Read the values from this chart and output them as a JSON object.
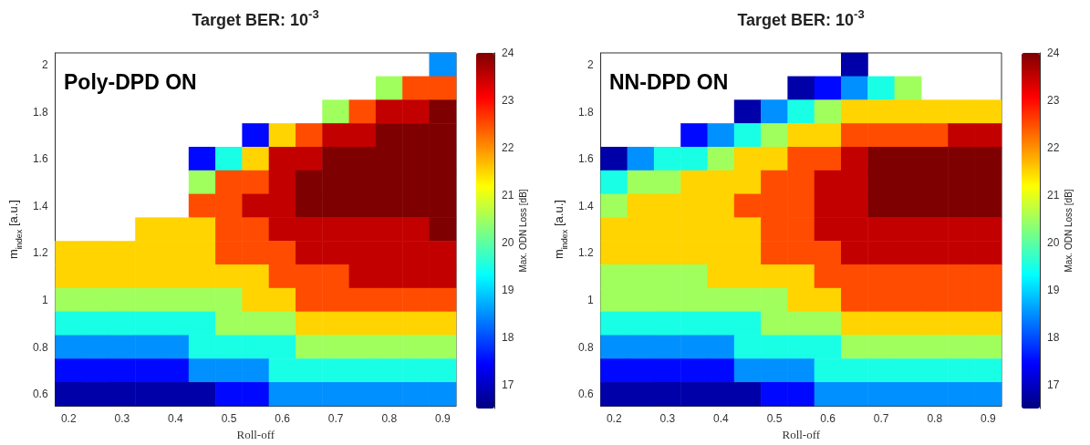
{
  "chart_data": [
    {
      "type": "heatmap",
      "title": "Target BER: 10$^{-3}$",
      "annotations": [
        "Poly-DPD ON"
      ],
      "xlabel": "Roll-off",
      "ylabel": "m$_{index}$ [a.u.]",
      "clabel": "Max. ODN Loss [dB]",
      "categories": [
        "0.2",
        null,
        "0.3",
        null,
        "0.4",
        null,
        "0.5",
        null,
        "0.6",
        null,
        "0.7",
        null,
        "0.8",
        null,
        "0.9"
      ],
      "y_categories": [
        "2",
        null,
        "1.8",
        null,
        "1.6",
        null,
        "1.4",
        null,
        "1.2",
        null,
        "1",
        null,
        "0.8",
        null,
        "0.6"
      ],
      "cells": [
        [
          null,
          null,
          null,
          null,
          null,
          null,
          null,
          null,
          null,
          null,
          null,
          null,
          null,
          null,
          18.5
        ],
        [
          null,
          null,
          null,
          null,
          null,
          null,
          null,
          null,
          null,
          null,
          null,
          null,
          20.5,
          22.5,
          22.5
        ],
        [
          null,
          null,
          null,
          null,
          null,
          null,
          null,
          null,
          null,
          null,
          20.5,
          22.5,
          23.5,
          23.5,
          24
        ],
        [
          null,
          null,
          null,
          null,
          null,
          null,
          null,
          17.5,
          21.5,
          22.5,
          23.5,
          23.5,
          24,
          24,
          24
        ],
        [
          null,
          null,
          null,
          null,
          null,
          17.5,
          19.5,
          21.5,
          23.5,
          23.5,
          24,
          24,
          24,
          24,
          24
        ],
        [
          null,
          null,
          null,
          null,
          null,
          20.5,
          22.5,
          22.5,
          23.5,
          24,
          24,
          24,
          24,
          24,
          24
        ],
        [
          null,
          null,
          null,
          null,
          null,
          22.5,
          22.5,
          23.5,
          23.5,
          24,
          24,
          24,
          24,
          24,
          24
        ],
        [
          null,
          null,
          null,
          21.5,
          21.5,
          21.5,
          22.5,
          22.5,
          23.5,
          23.5,
          23.5,
          23.5,
          23.5,
          23.5,
          24
        ],
        [
          21.5,
          21.5,
          21.5,
          21.5,
          21.5,
          21.5,
          22.5,
          22.5,
          22.5,
          23.5,
          23.5,
          23.5,
          23.5,
          23.5,
          23.5
        ],
        [
          21.5,
          21.5,
          21.5,
          21.5,
          21.5,
          21.5,
          21.5,
          21.5,
          22.5,
          22.5,
          22.5,
          23.5,
          23.5,
          23.5,
          23.5
        ],
        [
          20.5,
          20.5,
          20.5,
          20.5,
          20.5,
          20.5,
          20.5,
          21.5,
          21.5,
          22.5,
          22.5,
          22.5,
          22.5,
          22.5,
          22.5
        ],
        [
          19.5,
          19.5,
          19.5,
          19.5,
          19.5,
          19.5,
          20.5,
          20.5,
          20.5,
          21.5,
          21.5,
          21.5,
          21.5,
          21.5,
          21.5
        ],
        [
          18.5,
          18.5,
          18.5,
          18.5,
          18.5,
          19.5,
          19.5,
          19.5,
          19.5,
          20.5,
          20.5,
          20.5,
          20.5,
          20.5,
          20.5
        ],
        [
          17.5,
          17.5,
          17.5,
          17.5,
          17.5,
          18.5,
          18.5,
          18.5,
          19.5,
          19.5,
          19.5,
          19.5,
          19.5,
          19.5,
          19.5
        ],
        [
          16.8,
          16.8,
          16.8,
          16.8,
          16.8,
          16.8,
          17.5,
          17.5,
          18.5,
          18.5,
          18.5,
          18.5,
          18.5,
          18.5,
          18.5
        ]
      ],
      "clim": [
        16.5,
        24
      ],
      "cticks": [
        17,
        18,
        19,
        20,
        21,
        22,
        23,
        24
      ]
    },
    {
      "type": "heatmap",
      "title": "Target BER: 10$^{-3}$",
      "annotations": [
        "NN-DPD ON"
      ],
      "xlabel": "Roll-off",
      "ylabel": "m$_{index}$ [a.u.]",
      "clabel": "Max. ODN Loss [dB]",
      "categories": [
        "0.2",
        null,
        "0.3",
        null,
        "0.4",
        null,
        "0.5",
        null,
        "0.6",
        null,
        "0.7",
        null,
        "0.8",
        null,
        "0.9"
      ],
      "y_categories": [
        "2",
        null,
        "1.8",
        null,
        "1.6",
        null,
        "1.4",
        null,
        "1.2",
        null,
        "1",
        null,
        "0.8",
        null,
        "0.6"
      ],
      "cells": [
        [
          null,
          null,
          null,
          null,
          null,
          null,
          null,
          null,
          null,
          16.8,
          null,
          null,
          null,
          null,
          null
        ],
        [
          null,
          null,
          null,
          null,
          null,
          null,
          null,
          16.8,
          17.5,
          18.5,
          19.5,
          20.5,
          null,
          null,
          null
        ],
        [
          null,
          null,
          null,
          null,
          null,
          16.8,
          18.5,
          19.5,
          20.5,
          21.5,
          21.5,
          21.5,
          21.5,
          21.5,
          21.5
        ],
        [
          null,
          null,
          null,
          17.5,
          18.5,
          19.5,
          20.5,
          21.5,
          21.5,
          22.5,
          22.5,
          22.5,
          22.5,
          23.5,
          23.5
        ],
        [
          16.8,
          18.5,
          19.5,
          19.5,
          20.5,
          21.5,
          21.5,
          22.5,
          22.5,
          23.5,
          24,
          24,
          24,
          24,
          24
        ],
        [
          19.5,
          20.5,
          20.5,
          21.5,
          21.5,
          21.5,
          22.5,
          22.5,
          23.5,
          23.5,
          24,
          24,
          24,
          24,
          24
        ],
        [
          20.5,
          21.5,
          21.5,
          21.5,
          21.5,
          22.5,
          22.5,
          22.5,
          23.5,
          23.5,
          24,
          24,
          24,
          24,
          24
        ],
        [
          21.5,
          21.5,
          21.5,
          21.5,
          21.5,
          21.5,
          22.5,
          22.5,
          23.5,
          23.5,
          23.5,
          23.5,
          23.5,
          23.5,
          23.5
        ],
        [
          21.5,
          21.5,
          21.5,
          21.5,
          21.5,
          21.5,
          22.5,
          22.5,
          22.5,
          23.5,
          23.5,
          23.5,
          23.5,
          23.5,
          23.5
        ],
        [
          20.5,
          20.5,
          20.5,
          20.5,
          21.5,
          21.5,
          21.5,
          21.5,
          22.5,
          22.5,
          22.5,
          22.5,
          22.5,
          22.5,
          22.5
        ],
        [
          20.5,
          20.5,
          20.5,
          20.5,
          20.5,
          20.5,
          20.5,
          21.5,
          21.5,
          22.5,
          22.5,
          22.5,
          22.5,
          22.5,
          22.5
        ],
        [
          19.5,
          19.5,
          19.5,
          19.5,
          19.5,
          19.5,
          20.5,
          20.5,
          20.5,
          21.5,
          21.5,
          21.5,
          21.5,
          21.5,
          21.5
        ],
        [
          18.5,
          18.5,
          18.5,
          18.5,
          18.5,
          19.5,
          19.5,
          19.5,
          19.5,
          20.5,
          20.5,
          20.5,
          20.5,
          20.5,
          20.5
        ],
        [
          17.5,
          17.5,
          17.5,
          17.5,
          17.5,
          18.5,
          18.5,
          18.5,
          19.5,
          19.5,
          19.5,
          19.5,
          19.5,
          19.5,
          19.5
        ],
        [
          16.8,
          16.8,
          16.8,
          16.8,
          16.8,
          16.8,
          17.5,
          17.5,
          18.5,
          18.5,
          18.5,
          18.5,
          18.5,
          18.5,
          18.5
        ]
      ],
      "clim": [
        16.5,
        24
      ],
      "cticks": [
        17,
        18,
        19,
        20,
        21,
        22,
        23,
        24
      ]
    }
  ]
}
